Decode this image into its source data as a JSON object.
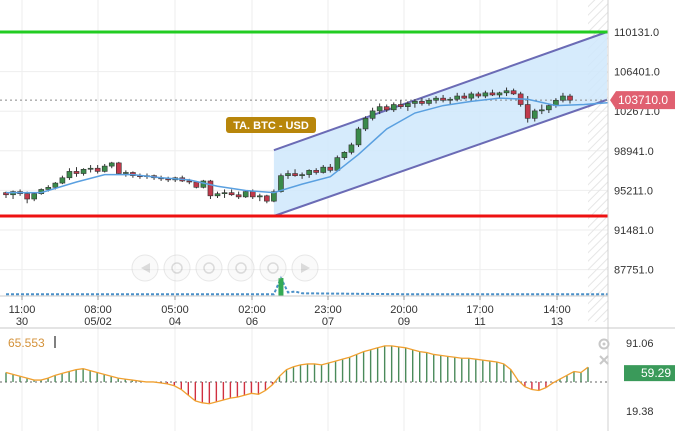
{
  "colors": {
    "up": "#3a8a4a",
    "down": "#c0394b",
    "ma": "#5aa0e0",
    "channel_fill": "#cfe8fb",
    "channel_line": "#6b6bb5",
    "resistance": "#22cc22",
    "support": "#ee1111",
    "price_badge": "#e06070",
    "label_badge": "#b8860b",
    "osc_line": "#f0a030",
    "osc_badge": "#3a9a5a",
    "volume": "#4a90c8"
  },
  "chart_data": [
    {
      "type": "candlestick",
      "title": "",
      "annotation": "TA. BTC - USD",
      "current_price": "103710.0",
      "ylim": [
        86500,
        111500
      ],
      "price_ticks": [
        "110131.0",
        "106401.0",
        "102671.0",
        "98941.0",
        "95211.0",
        "91481.0",
        "87751.0"
      ],
      "price_tick_values": [
        110131,
        106401,
        102671,
        98941,
        95211,
        91481,
        87751
      ],
      "x_labels": [
        {
          "time": "11:00",
          "date": "30"
        },
        {
          "time": "08:00",
          "date": "05/02"
        },
        {
          "time": "05:00",
          "date": "04"
        },
        {
          "time": "02:00",
          "date": "06"
        },
        {
          "time": "23:00",
          "date": "07"
        },
        {
          "time": "20:00",
          "date": "09"
        },
        {
          "time": "17:00",
          "date": "11"
        },
        {
          "time": "14:00",
          "date": "13"
        }
      ],
      "horizontal_levels": [
        {
          "role": "resistance",
          "value": 110131
        },
        {
          "role": "support",
          "value": 92800
        }
      ],
      "channel": {
        "start_index": 38,
        "end_index": 86,
        "upper": [
          99000,
          110131
        ],
        "lower": [
          92800,
          103750
        ]
      },
      "candles": [
        [
          95000,
          95100,
          94500,
          94800
        ],
        [
          94800,
          95200,
          94400,
          95100
        ],
        [
          95100,
          95300,
          94700,
          94900
        ],
        [
          94900,
          95100,
          94000,
          94400
        ],
        [
          94400,
          95000,
          94200,
          94900
        ],
        [
          94900,
          95400,
          94800,
          95300
        ],
        [
          95300,
          95700,
          95100,
          95500
        ],
        [
          95500,
          96000,
          95300,
          95900
        ],
        [
          95900,
          96600,
          95800,
          96400
        ],
        [
          96400,
          97300,
          96200,
          97000
        ],
        [
          97000,
          97400,
          96500,
          96800
        ],
        [
          96800,
          97300,
          96600,
          97200
        ],
        [
          97200,
          97600,
          96900,
          97300
        ],
        [
          97300,
          97600,
          96800,
          97000
        ],
        [
          97000,
          97700,
          96900,
          97500
        ],
        [
          97500,
          97900,
          97300,
          97800
        ],
        [
          97800,
          97900,
          96700,
          96800
        ],
        [
          96800,
          97100,
          96500,
          96900
        ],
        [
          96900,
          97000,
          96400,
          96600
        ],
        [
          96600,
          96800,
          96300,
          96500
        ],
        [
          96500,
          96800,
          96300,
          96600
        ],
        [
          96600,
          96700,
          96200,
          96400
        ],
        [
          96400,
          96600,
          96100,
          96300
        ],
        [
          96300,
          96500,
          96000,
          96200
        ],
        [
          96200,
          96500,
          96000,
          96400
        ],
        [
          96400,
          96600,
          96000,
          96100
        ],
        [
          96100,
          96300,
          95800,
          96000
        ],
        [
          96000,
          96100,
          95400,
          95500
        ],
        [
          95500,
          96200,
          95400,
          96100
        ],
        [
          96100,
          96200,
          94400,
          94700
        ],
        [
          94700,
          95100,
          94500,
          94900
        ],
        [
          94900,
          95300,
          94500,
          95000
        ],
        [
          95000,
          95300,
          94700,
          94800
        ],
        [
          94800,
          95100,
          94400,
          94600
        ],
        [
          94600,
          95200,
          94500,
          95100
        ],
        [
          95100,
          95300,
          94400,
          94600
        ],
        [
          94600,
          94900,
          94200,
          94700
        ],
        [
          94700,
          94800,
          94000,
          94200
        ],
        [
          94200,
          95300,
          94100,
          95100
        ],
        [
          95100,
          96800,
          95000,
          96600
        ],
        [
          96600,
          97100,
          96300,
          96800
        ],
        [
          96800,
          97200,
          96500,
          96600
        ],
        [
          96600,
          96900,
          96300,
          96700
        ],
        [
          96700,
          97200,
          96400,
          97100
        ],
        [
          97100,
          97300,
          96700,
          96900
        ],
        [
          96900,
          97600,
          96800,
          97400
        ],
        [
          97400,
          97700,
          96900,
          97100
        ],
        [
          97100,
          98500,
          97000,
          98300
        ],
        [
          98300,
          98900,
          98100,
          98800
        ],
        [
          98800,
          99700,
          98600,
          99500
        ],
        [
          99500,
          101200,
          99300,
          101000
        ],
        [
          101000,
          102200,
          100800,
          102000
        ],
        [
          102000,
          103000,
          101800,
          102700
        ],
        [
          102700,
          103400,
          102400,
          103100
        ],
        [
          103100,
          103300,
          102600,
          102800
        ],
        [
          102800,
          103500,
          102600,
          103300
        ],
        [
          103300,
          103700,
          102900,
          103100
        ],
        [
          103100,
          103600,
          102700,
          103400
        ],
        [
          103400,
          103800,
          103000,
          103600
        ],
        [
          103600,
          103900,
          103200,
          103400
        ],
        [
          103400,
          103900,
          103200,
          103700
        ],
        [
          103700,
          104100,
          103400,
          103900
        ],
        [
          103900,
          104200,
          103500,
          103700
        ],
        [
          103700,
          104000,
          103300,
          103800
        ],
        [
          103800,
          104400,
          103600,
          104100
        ],
        [
          104100,
          104400,
          103800,
          103900
        ],
        [
          103900,
          104500,
          103700,
          104300
        ],
        [
          104300,
          104500,
          103900,
          104100
        ],
        [
          104100,
          104600,
          103900,
          104400
        ],
        [
          104400,
          104700,
          104100,
          104200
        ],
        [
          104200,
          104500,
          103900,
          104400
        ],
        [
          104400,
          104900,
          104100,
          104600
        ],
        [
          104600,
          104800,
          104200,
          104300
        ],
        [
          104300,
          104500,
          103100,
          103300
        ],
        [
          103300,
          104100,
          101600,
          102000
        ],
        [
          102000,
          102900,
          101700,
          102700
        ],
        [
          102700,
          103300,
          102400,
          102800
        ],
        [
          102800,
          103400,
          102500,
          103200
        ],
        [
          103200,
          103900,
          103000,
          103700
        ],
        [
          103700,
          104400,
          103500,
          104100
        ],
        [
          104100,
          104300,
          103400,
          103710
        ]
      ],
      "moving_average": [
        [
          0,
          95000
        ],
        [
          5,
          95000
        ],
        [
          10,
          96000
        ],
        [
          14,
          96700
        ],
        [
          18,
          96700
        ],
        [
          22,
          96400
        ],
        [
          26,
          96200
        ],
        [
          30,
          95600
        ],
        [
          34,
          95200
        ],
        [
          38,
          95000
        ],
        [
          42,
          95800
        ],
        [
          46,
          96500
        ],
        [
          50,
          98600
        ],
        [
          54,
          101000
        ],
        [
          58,
          102500
        ],
        [
          62,
          103200
        ],
        [
          66,
          103600
        ],
        [
          70,
          103900
        ],
        [
          74,
          103800
        ],
        [
          78,
          103200
        ],
        [
          82,
          103300
        ],
        [
          86,
          103500
        ]
      ],
      "volume": [
        [
          0,
          0.1
        ],
        [
          20,
          0.1
        ],
        [
          38,
          0.1
        ],
        [
          39,
          1.0
        ],
        [
          40,
          0.2
        ],
        [
          41,
          0.25
        ],
        [
          42,
          0.15
        ],
        [
          56,
          0.1
        ],
        [
          86,
          0.1
        ]
      ]
    },
    {
      "type": "line",
      "title": "",
      "indicator_value": "65.553",
      "current_value": "59.29",
      "ylim": [
        12,
        96
      ],
      "y_ticks": [
        "91.06",
        "19.38"
      ],
      "y_tick_values": [
        91.06,
        19.38
      ],
      "midline": 50,
      "series": [
        {
          "values": [
            60,
            58,
            56,
            54,
            52,
            52,
            54,
            57,
            59,
            61,
            63,
            64,
            62,
            60,
            58,
            56,
            54,
            53,
            52,
            51,
            50,
            50,
            49,
            48,
            46,
            42,
            36,
            30,
            28,
            27,
            29,
            31,
            33,
            34,
            36,
            38,
            37,
            41,
            47,
            56,
            63,
            66,
            68,
            69,
            69,
            68,
            70,
            72,
            74,
            76,
            79,
            82,
            84,
            86,
            88,
            88,
            87,
            86,
            84,
            82,
            81,
            79,
            78,
            77,
            76,
            75,
            75,
            74,
            73,
            72,
            71,
            69,
            63,
            52,
            45,
            42,
            41,
            44,
            49,
            53,
            57,
            61,
            60,
            65.553
          ]
        }
      ]
    }
  ]
}
